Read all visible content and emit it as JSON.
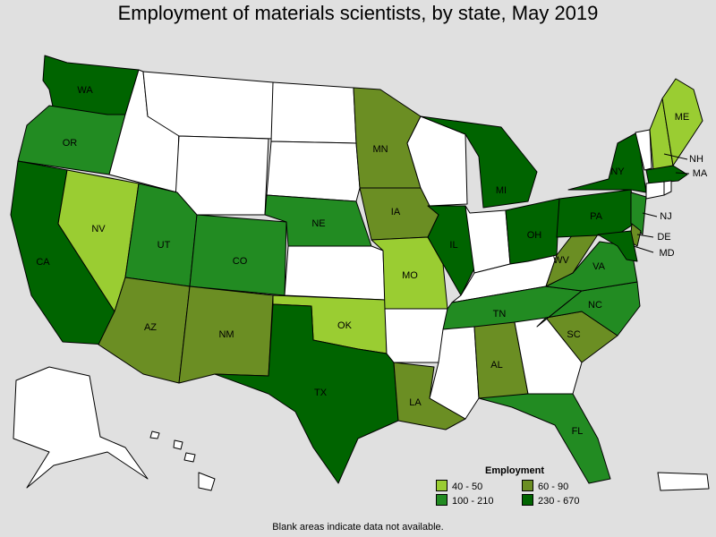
{
  "title": "Employment of materials scientists, by state, May 2019",
  "colors": {
    "no_data": "#ffffff",
    "bin_40_50": "#9acd32",
    "bin_60_90": "#6b8e23",
    "bin_100_210": "#228b22",
    "bin_230_670": "#006400"
  },
  "legend": {
    "title": "Employment",
    "items": [
      {
        "label": "40 - 50",
        "color": "#9acd32"
      },
      {
        "label": "60 - 90",
        "color": "#6b8e23"
      },
      {
        "label": "100 - 210",
        "color": "#228b22"
      },
      {
        "label": "230 - 670",
        "color": "#006400"
      }
    ]
  },
  "footnote": "Blank areas indicate data not available.",
  "states": {
    "WA": {
      "bin": "230 - 670"
    },
    "OR": {
      "bin": "100 - 210"
    },
    "CA": {
      "bin": "230 - 670"
    },
    "NV": {
      "bin": "40 - 50"
    },
    "ID": {
      "bin": ""
    },
    "MT": {
      "bin": ""
    },
    "WY": {
      "bin": ""
    },
    "UT": {
      "bin": "100 - 210"
    },
    "AZ": {
      "bin": "60 - 90"
    },
    "CO": {
      "bin": "100 - 210"
    },
    "NM": {
      "bin": "60 - 90"
    },
    "ND": {
      "bin": ""
    },
    "SD": {
      "bin": ""
    },
    "NE": {
      "bin": "100 - 210"
    },
    "KS": {
      "bin": ""
    },
    "OK": {
      "bin": "40 - 50"
    },
    "TX": {
      "bin": "230 - 670"
    },
    "MN": {
      "bin": "60 - 90"
    },
    "IA": {
      "bin": "60 - 90"
    },
    "MO": {
      "bin": "40 - 50"
    },
    "AR": {
      "bin": ""
    },
    "LA": {
      "bin": "60 - 90"
    },
    "WI": {
      "bin": ""
    },
    "IL": {
      "bin": "230 - 670"
    },
    "MI": {
      "bin": "230 - 670"
    },
    "IN": {
      "bin": ""
    },
    "OH": {
      "bin": "230 - 670"
    },
    "KY": {
      "bin": ""
    },
    "TN": {
      "bin": "100 - 210"
    },
    "MS": {
      "bin": ""
    },
    "AL": {
      "bin": "60 - 90"
    },
    "GA": {
      "bin": ""
    },
    "FL": {
      "bin": "100 - 210"
    },
    "SC": {
      "bin": "60 - 90"
    },
    "NC": {
      "bin": "100 - 210"
    },
    "VA": {
      "bin": "100 - 210"
    },
    "WV": {
      "bin": "60 - 90"
    },
    "PA": {
      "bin": "230 - 670"
    },
    "NY": {
      "bin": "230 - 670"
    },
    "NJ": {
      "bin": "100 - 210"
    },
    "DE": {
      "bin": "60 - 90"
    },
    "MD": {
      "bin": "230 - 670"
    },
    "VT": {
      "bin": ""
    },
    "NH": {
      "bin": "40 - 50"
    },
    "ME": {
      "bin": "40 - 50"
    },
    "MA": {
      "bin": "230 - 670"
    },
    "CT": {
      "bin": ""
    },
    "RI": {
      "bin": ""
    },
    "AK": {
      "bin": ""
    },
    "HI": {
      "bin": ""
    },
    "PR": {
      "bin": ""
    }
  }
}
